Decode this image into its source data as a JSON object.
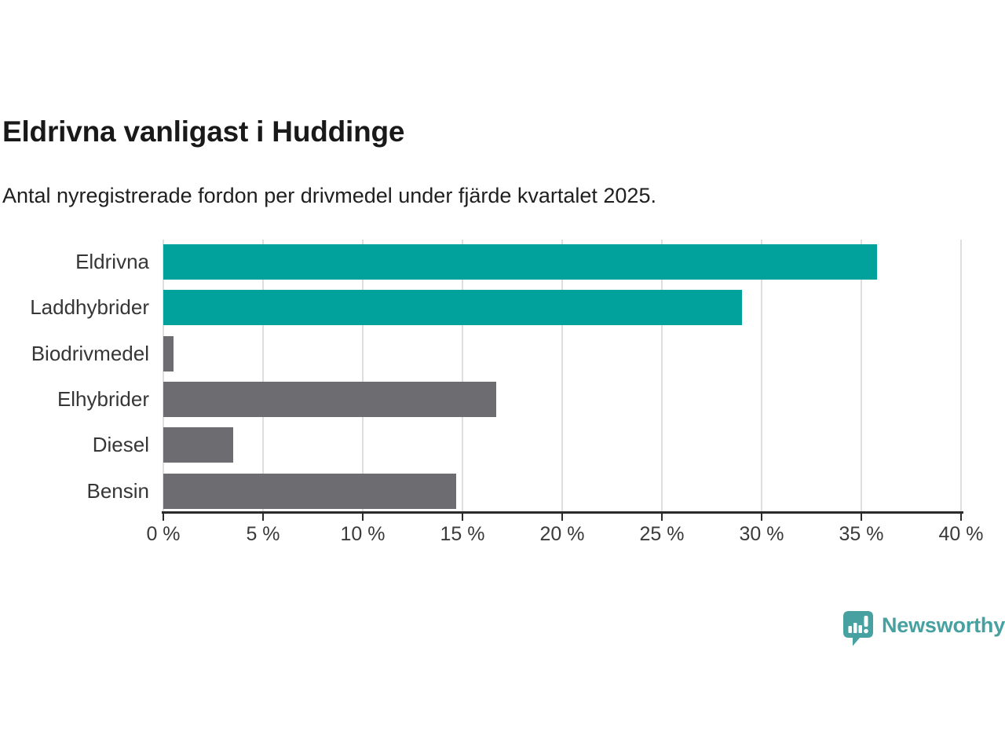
{
  "header": {
    "title": "Eldrivna vanligast i Huddinge",
    "subtitle": "Antal nyregistrerade fordon per drivmedel under fjärde kvartalet 2025."
  },
  "chart_data": {
    "type": "bar",
    "orientation": "horizontal",
    "title": "Eldrivna vanligast i Huddinge",
    "subtitle": "Antal nyregistrerade fordon per drivmedel under fjärde kvartalet 2025.",
    "categories": [
      "Eldrivna",
      "Laddhybrider",
      "Biodrivmedel",
      "Elhybrider",
      "Diesel",
      "Bensin"
    ],
    "values": [
      35.8,
      29.0,
      0.5,
      16.7,
      3.5,
      14.7
    ],
    "unit": "%",
    "bar_colors": [
      "#00a29b",
      "#00a29b",
      "#6d6c71",
      "#6d6c71",
      "#6d6c71",
      "#6d6c71"
    ],
    "xlim": [
      0,
      40
    ],
    "x_ticks": [
      0,
      5,
      10,
      15,
      20,
      25,
      30,
      35,
      40
    ],
    "x_tick_labels": [
      "0 %",
      "5 %",
      "10 %",
      "15 %",
      "20 %",
      "25 %",
      "30 %",
      "35 %",
      "40 %"
    ],
    "xlabel": "",
    "ylabel": "",
    "grid": "vertical-only",
    "legend": "none"
  },
  "colors": {
    "accent_teal": "#00a29b",
    "neutral_gray": "#6d6c71",
    "axis": "#2b2b2b",
    "gridline": "#dedede",
    "title_text": "#191919",
    "label_text": "#363636",
    "logo_teal": "#46a1a0",
    "background": "#ffffff"
  },
  "branding": {
    "logo_text": "Newsworthy"
  }
}
